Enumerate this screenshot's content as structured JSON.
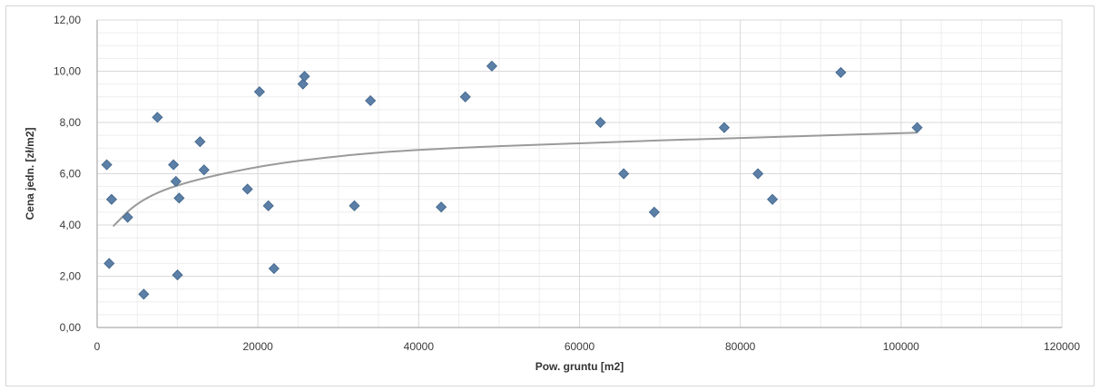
{
  "chart_data": {
    "type": "scatter",
    "title": "",
    "xlabel": "Pow. gruntu [m2]",
    "ylabel": "Cena jedn. [zł/m2]",
    "xlim": [
      0,
      120000
    ],
    "ylim": [
      0,
      12
    ],
    "x_ticks": [
      0,
      20000,
      40000,
      60000,
      80000,
      100000,
      120000
    ],
    "x_tick_labels": [
      "0",
      "20000",
      "40000",
      "60000",
      "80000",
      "100000",
      "120000"
    ],
    "y_ticks": [
      0,
      2,
      4,
      6,
      8,
      10,
      12
    ],
    "y_tick_labels": [
      "0,00",
      "2,00",
      "4,00",
      "6,00",
      "8,00",
      "10,00",
      "12,00"
    ],
    "grid": true,
    "legend": "none",
    "colors": {
      "points": "#5b7fa6",
      "trendline": "#9a9a9a",
      "grid": "#d9d9d9"
    },
    "series": [
      {
        "points": [
          [
            1200,
            6.35
          ],
          [
            1500,
            2.5
          ],
          [
            1800,
            5.0
          ],
          [
            3800,
            4.3
          ],
          [
            5800,
            1.3
          ],
          [
            7500,
            8.2
          ],
          [
            9500,
            6.35
          ],
          [
            9800,
            5.7
          ],
          [
            10000,
            2.05
          ],
          [
            10200,
            5.05
          ],
          [
            12800,
            7.25
          ],
          [
            13300,
            6.15
          ],
          [
            18700,
            5.4
          ],
          [
            20200,
            9.2
          ],
          [
            21300,
            4.75
          ],
          [
            22000,
            2.3
          ],
          [
            25600,
            9.5
          ],
          [
            25800,
            9.8
          ],
          [
            32000,
            4.75
          ],
          [
            34000,
            8.85
          ],
          [
            42800,
            4.7
          ],
          [
            45800,
            9.0
          ],
          [
            49100,
            10.2
          ],
          [
            62600,
            8.0
          ],
          [
            65500,
            6.0
          ],
          [
            69300,
            4.5
          ],
          [
            78000,
            7.8
          ],
          [
            82200,
            6.0
          ],
          [
            84000,
            5.0
          ],
          [
            92500,
            9.95
          ],
          [
            102000,
            7.8
          ]
        ]
      }
    ],
    "trendline": {
      "type": "logarithmic",
      "points": [
        [
          2000,
          3.95
        ],
        [
          5000,
          4.9
        ],
        [
          10000,
          5.6
        ],
        [
          20000,
          6.3
        ],
        [
          30000,
          6.7
        ],
        [
          40000,
          6.95
        ],
        [
          60000,
          7.2
        ],
        [
          80000,
          7.4
        ],
        [
          102000,
          7.6
        ]
      ]
    }
  }
}
